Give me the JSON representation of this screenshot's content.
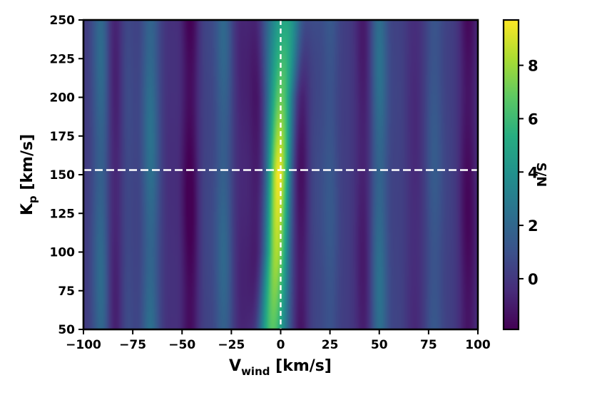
{
  "chart_data": {
    "type": "heatmap",
    "title": "",
    "xlabel": {
      "main": "V",
      "sub": "wind",
      "unit": " [km/s]"
    },
    "ylabel": {
      "main": "K",
      "sub": "p",
      "unit": " [km/s]"
    },
    "colorbar_label": "S/N",
    "colormap": "viridis",
    "xlim": [
      -100,
      100
    ],
    "ylim": [
      50,
      250
    ],
    "xticks": [
      -100,
      -75,
      -50,
      -25,
      0,
      25,
      50,
      75,
      100
    ],
    "xtick_labels": [
      "−100",
      "−75",
      "−50",
      "−25",
      "0",
      "25",
      "50",
      "75",
      "100"
    ],
    "yticks": [
      50,
      75,
      100,
      125,
      150,
      175,
      200,
      225,
      250
    ],
    "ytick_labels": [
      "50",
      "75",
      "100",
      "125",
      "150",
      "175",
      "200",
      "225",
      "250"
    ],
    "colorbar_range": [
      -1.9,
      9.7
    ],
    "colorbar_ticks": [
      0,
      2,
      4,
      6,
      8
    ],
    "colorbar_tick_labels": [
      "0",
      "2",
      "4",
      "6",
      "8"
    ],
    "peak": {
      "v_wind": 0,
      "kp": 153,
      "snr": 9.6
    },
    "markers": {
      "vline_v_wind": 0,
      "hline_kp": 153,
      "style": "dashed",
      "color": "#ffffff"
    },
    "ridge": [
      {
        "kp": 50,
        "v_wind": -4,
        "width": 5.0,
        "snr": 6.6
      },
      {
        "kp": 100,
        "v_wind": -2,
        "width": 4.0,
        "snr": 8.3
      },
      {
        "kp": 150,
        "v_wind": -1,
        "width": 3.8,
        "snr": 9.6
      },
      {
        "kp": 200,
        "v_wind": 0,
        "width": 4.5,
        "snr": 7.0
      },
      {
        "kp": 250,
        "v_wind": 2,
        "width": 6.5,
        "snr": 5.0
      }
    ],
    "stripes": [
      {
        "v_wind": -91,
        "snr": 2.0
      },
      {
        "v_wind": -84,
        "snr": -1.0
      },
      {
        "v_wind": -78,
        "snr": 0.8
      },
      {
        "v_wind": -66,
        "snr": 2.2
      },
      {
        "v_wind": -56,
        "snr": -0.3
      },
      {
        "v_wind": -46,
        "snr": -1.8
      },
      {
        "v_wind": -38,
        "snr": 0.5
      },
      {
        "v_wind": -29,
        "snr": 1.8
      },
      {
        "v_wind": -20,
        "snr": -0.6
      },
      {
        "v_wind": -12,
        "snr": -1.2
      },
      {
        "v_wind": 10,
        "snr": -1.4
      },
      {
        "v_wind": 17,
        "snr": 0.6
      },
      {
        "v_wind": 25,
        "snr": 1.2
      },
      {
        "v_wind": 34,
        "snr": 0.2
      },
      {
        "v_wind": 42,
        "snr": -1.0
      },
      {
        "v_wind": 50,
        "snr": 2.2
      },
      {
        "v_wind": 60,
        "snr": 0.4
      },
      {
        "v_wind": 68,
        "snr": -0.5
      },
      {
        "v_wind": 78,
        "snr": 1.3
      },
      {
        "v_wind": 86,
        "snr": 0.3
      },
      {
        "v_wind": 95,
        "snr": -1.5
      }
    ]
  }
}
